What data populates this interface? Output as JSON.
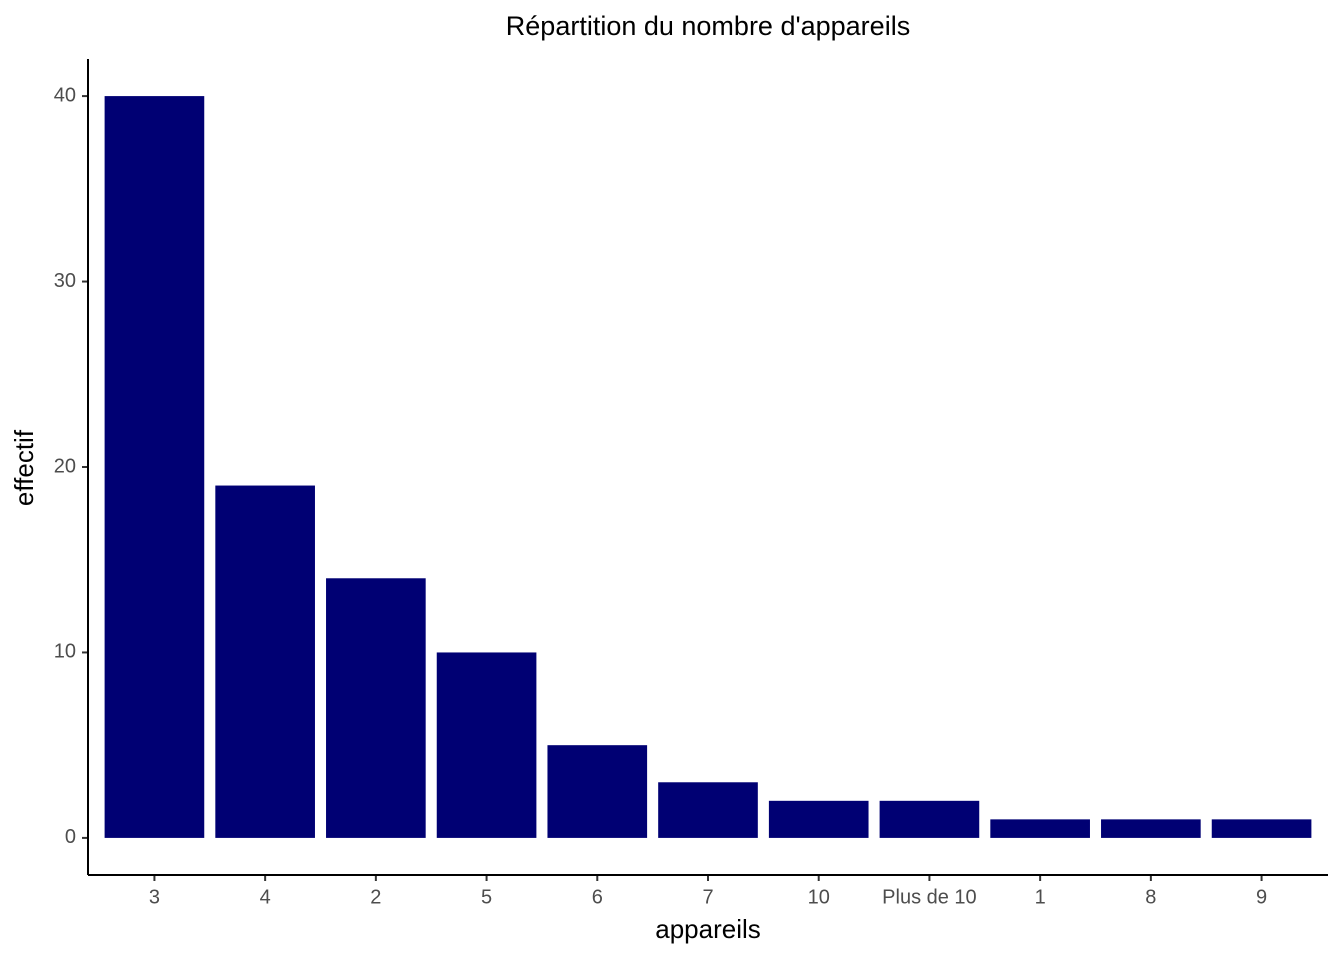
{
  "chart_data": {
    "type": "bar",
    "title": "Répartition du nombre d'appareils",
    "x_label": "appareils",
    "y_label": "effectif",
    "categories": [
      "3",
      "4",
      "2",
      "5",
      "6",
      "7",
      "10",
      "Plus de 10",
      "1",
      "8",
      "9"
    ],
    "values": [
      40,
      19,
      14,
      10,
      5,
      3,
      2,
      2,
      1,
      1,
      1
    ],
    "color": "#000073",
    "ylim": [
      -2,
      42
    ],
    "yticks": [
      0,
      10,
      20,
      30,
      40
    ],
    "grid": false
  }
}
